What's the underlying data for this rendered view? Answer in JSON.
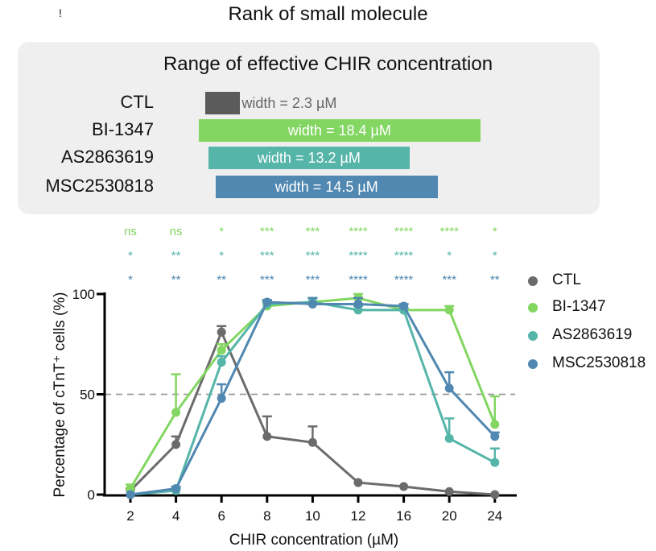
{
  "header": {
    "title": "Rank of small molecule",
    "corner_glyph": "!"
  },
  "range_panel": {
    "title": "Range of effective CHIR concentration",
    "rows": [
      {
        "label": "CTL",
        "bar_text": "width = 2.3 µM",
        "color": "#5b5b5b",
        "start": 5.3,
        "width": 2.3
      },
      {
        "label": "BI-1347",
        "bar_text": "width = 18.4 µM",
        "color": "#82d661",
        "start": 4.9,
        "width": 18.4
      },
      {
        "label": "AS2863619",
        "bar_text": "width = 13.2 µM",
        "color": "#54b5a8",
        "start": 5.5,
        "width": 13.2
      },
      {
        "label": "MSC2530818",
        "bar_text": "width = 14.5 µM",
        "color": "#5088b1",
        "start": 6.0,
        "width": 14.5
      }
    ]
  },
  "significance": {
    "rows": [
      {
        "series": "BI-1347",
        "color": "#82d661",
        "marks": [
          "ns",
          "ns",
          "*",
          "***",
          "***",
          "****",
          "****",
          "****",
          "*"
        ]
      },
      {
        "series": "AS2863619",
        "color": "#54b5a8",
        "marks": [
          "*",
          "**",
          "*",
          "***",
          "***",
          "****",
          "****",
          "*",
          "*"
        ]
      },
      {
        "series": "MSC2530818",
        "color": "#5088b1",
        "marks": [
          "*",
          "**",
          "**",
          "***",
          "***",
          "****",
          "****",
          "***",
          "**"
        ]
      }
    ]
  },
  "chart_data": {
    "type": "line",
    "title": "",
    "xlabel": "CHIR concentration (µM)",
    "ylabel": "Percentage of cTnT⁺ cells (%)",
    "categories": [
      "2",
      "4",
      "6",
      "8",
      "10",
      "12",
      "16",
      "20",
      "24"
    ],
    "yticks": [
      "0",
      "50",
      "100"
    ],
    "ylim": [
      0,
      100
    ],
    "reference_line": 50,
    "legend_position": "right",
    "series": [
      {
        "name": "CTL",
        "color": "#6b6b6b",
        "values": [
          2,
          25,
          81,
          29,
          26,
          6,
          4,
          1.5,
          0
        ],
        "errors": [
          1,
          4,
          3,
          10,
          8,
          0,
          0,
          0,
          0
        ]
      },
      {
        "name": "BI-1347",
        "color": "#82d661",
        "values": [
          3,
          41,
          72,
          94,
          96,
          98,
          92,
          92,
          35
        ],
        "errors": [
          2,
          19,
          3,
          2,
          2,
          2,
          1,
          2,
          14
        ]
      },
      {
        "name": "AS2863619",
        "color": "#54b5a8",
        "values": [
          0,
          2,
          66,
          95,
          96,
          92,
          92,
          28,
          16
        ],
        "errors": [
          0,
          1,
          3,
          2,
          2,
          2,
          1,
          10,
          7
        ]
      },
      {
        "name": "MSC2530818",
        "color": "#5088b1",
        "values": [
          0,
          3,
          48,
          96,
          95,
          95,
          94,
          53,
          29
        ],
        "errors": [
          0,
          1,
          7,
          1,
          3,
          3,
          1,
          8,
          2
        ]
      }
    ]
  }
}
